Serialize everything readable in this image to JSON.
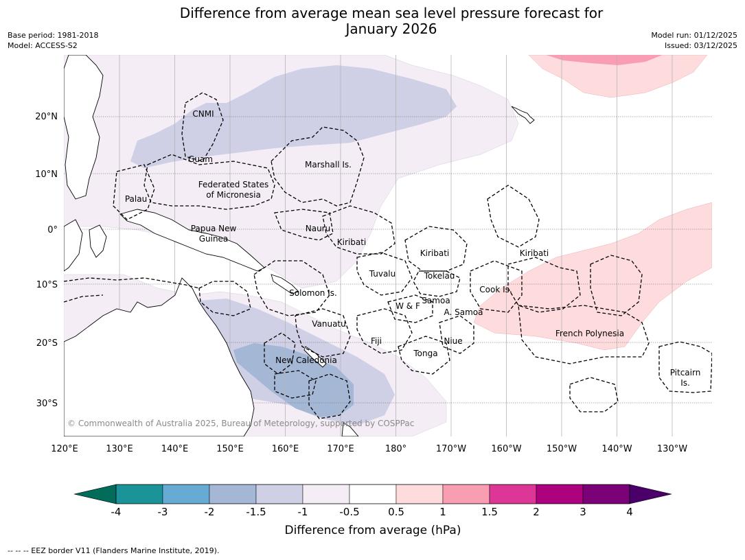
{
  "title_line1": "Difference from average mean sea level pressure forecast for",
  "title_line2": "January 2026",
  "meta_left": {
    "base_period": "Base period: 1981-2018",
    "model": "Model: ACCESS-S2"
  },
  "meta_right": {
    "model_run": "Model run: 01/12/2025",
    "issued": "Issued: 03/12/2025"
  },
  "map": {
    "lat_labels": [
      "20°N",
      "10°N",
      "0°",
      "10°S",
      "20°S",
      "30°S"
    ],
    "lon_labels": [
      "120°E",
      "130°E",
      "140°E",
      "150°E",
      "160°E",
      "170°E",
      "180°",
      "170°W",
      "160°W",
      "150°W",
      "140°W",
      "130°W"
    ],
    "place_labels": {
      "cnmi": "CNMI",
      "guam": "Guam",
      "marshall": "Marshall Is.",
      "fsm1": "Federated States",
      "fsm2": "of Micronesia",
      "palau": "Palau",
      "png1": "Papua New",
      "png2": "Guinea",
      "nauru": "Nauru",
      "kiribati_w": "Kiribati",
      "kiribati_c": "Kiribati",
      "kiribati_e": "Kiribati",
      "tuvalu": "Tuvalu",
      "tokelau": "Tokelau",
      "cook": "Cook Is.",
      "solomon": "Solomon Is.",
      "wf": "W & F",
      "samoa": "Samoa",
      "asamoa": "A. Samoa",
      "vanuatu": "Vanuatu",
      "fiji": "Fiji",
      "niue": "Niue",
      "tonga": "Tonga",
      "frpoly": "French Polynesia",
      "newcal": "New Caledonia",
      "pitcairn1": "Pitcairn",
      "pitcairn2": "Is."
    },
    "copyright": "© Commonwealth of Australia 2025, Bureau of Meteorology, supported by COSPPac"
  },
  "colorbar": {
    "title": "Difference from average (hPa)",
    "tick_labels": [
      "-4",
      "-3",
      "-2",
      "-1.5",
      "-1",
      "-0.5",
      "0.5",
      "1",
      "1.5",
      "2",
      "3",
      "4"
    ],
    "colors": [
      "#1a9399",
      "#67aad3",
      "#a4b8d6",
      "#cfd0e5",
      "#f4edf5",
      "#ffffff",
      "#fedcdd",
      "#f99db2",
      "#dc3696",
      "#ae017e",
      "#7a0177"
    ],
    "under_color": "#016c59",
    "over_color": "#49006a"
  },
  "footnote": "--  --  -- EEZ border V11 (Flanders Marine Institute, 2019)."
}
